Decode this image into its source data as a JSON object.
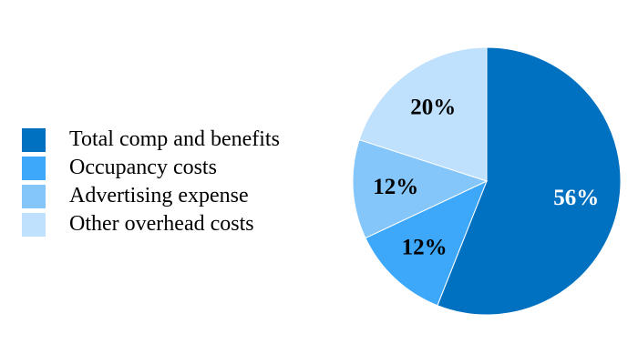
{
  "chart_data": {
    "type": "pie",
    "title": "",
    "start_angle_deg": 0,
    "direction": "clockwise",
    "legend_position": "left",
    "slices": [
      {
        "name": "Total comp and benefits",
        "value": 56,
        "label": "56%",
        "color": "#0070C0",
        "label_color": "#FFFFFF"
      },
      {
        "name": "Occupancy costs",
        "value": 12,
        "label": "12%",
        "color": "#3DA8FA",
        "label_color": "#000000"
      },
      {
        "name": "Advertising expense",
        "value": 12,
        "label": "12%",
        "color": "#85C6FA",
        "label_color": "#000000"
      },
      {
        "name": "Other overhead costs",
        "value": 20,
        "label": "20%",
        "color": "#BFE1FD",
        "label_color": "#000000"
      }
    ]
  }
}
